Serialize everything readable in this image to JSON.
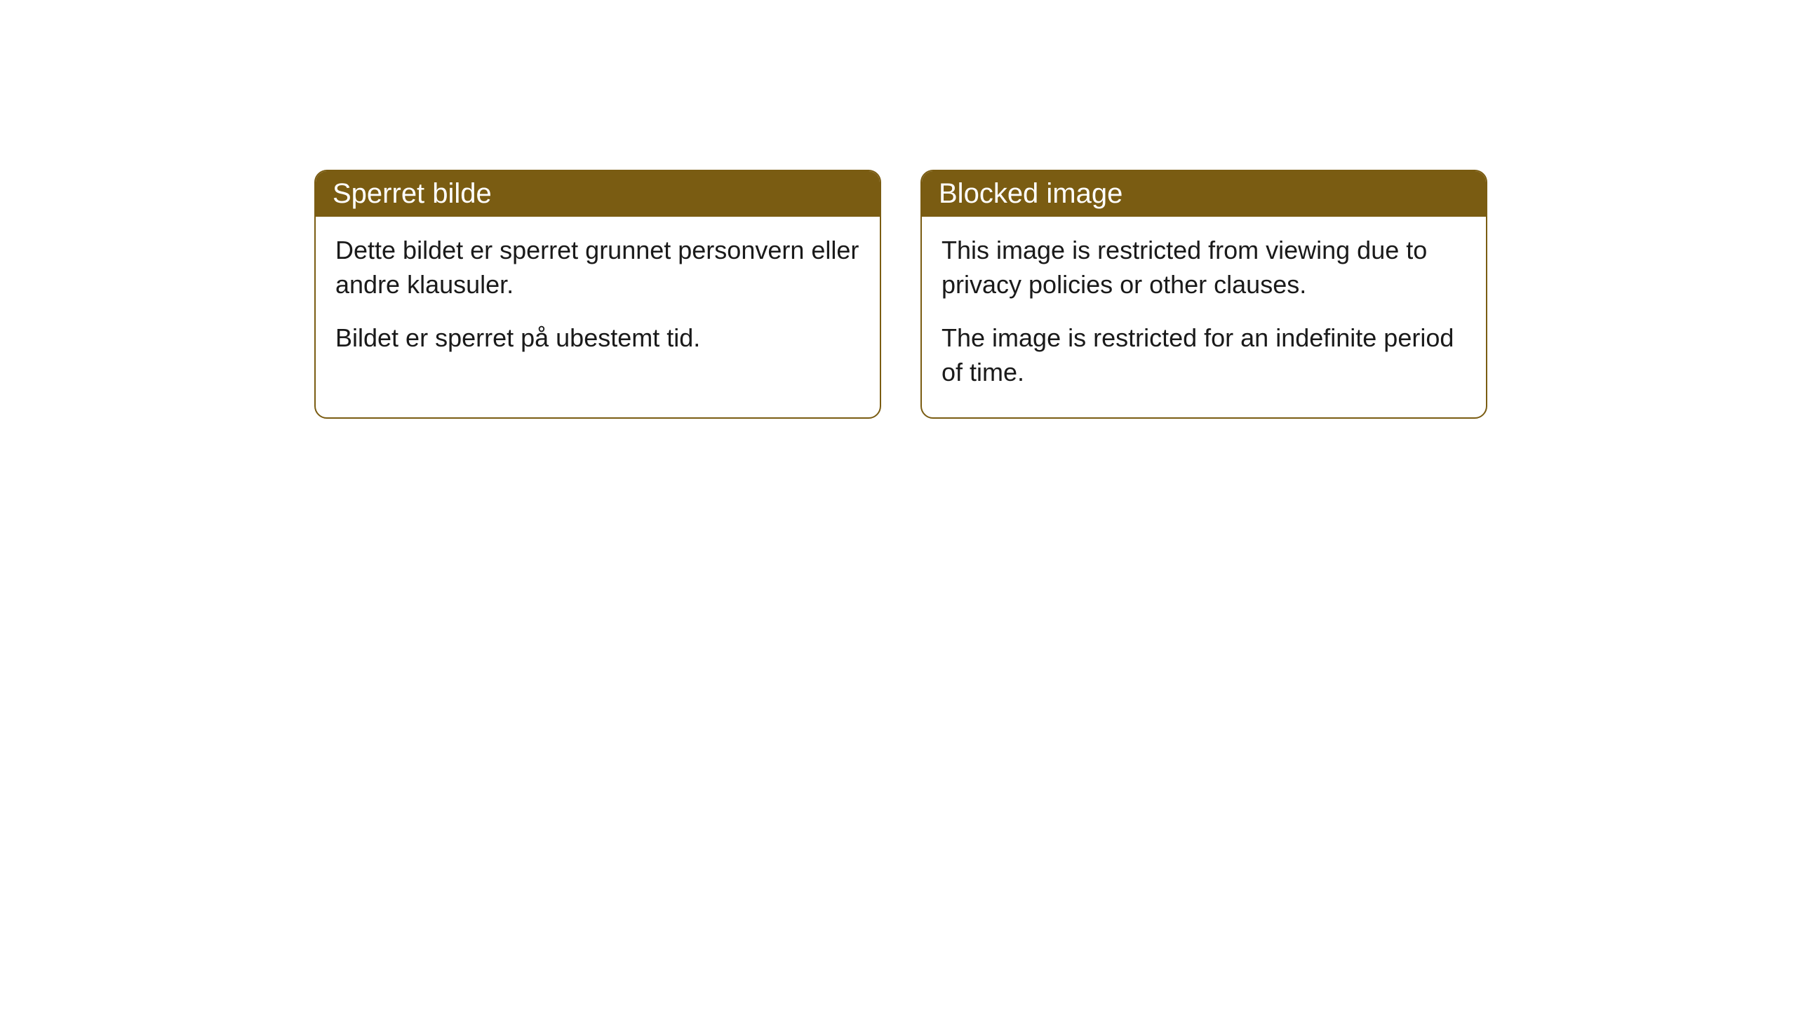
{
  "cards": [
    {
      "title": "Sperret bilde",
      "paragraph1": "Dette bildet er sperret grunnet personvern eller andre klausuler.",
      "paragraph2": "Bildet er sperret på ubestemt tid."
    },
    {
      "title": "Blocked image",
      "paragraph1": "This image is restricted from viewing due to privacy policies or other clauses.",
      "paragraph2": "The image is restricted for an indefinite period of time."
    }
  ],
  "style": {
    "header_bg_color": "#7a5c12",
    "header_text_color": "#ffffff",
    "border_color": "#7a5c12",
    "body_text_color": "#1a1a1a",
    "background_color": "#ffffff",
    "border_radius": 18,
    "title_fontsize": 40,
    "body_fontsize": 36
  }
}
